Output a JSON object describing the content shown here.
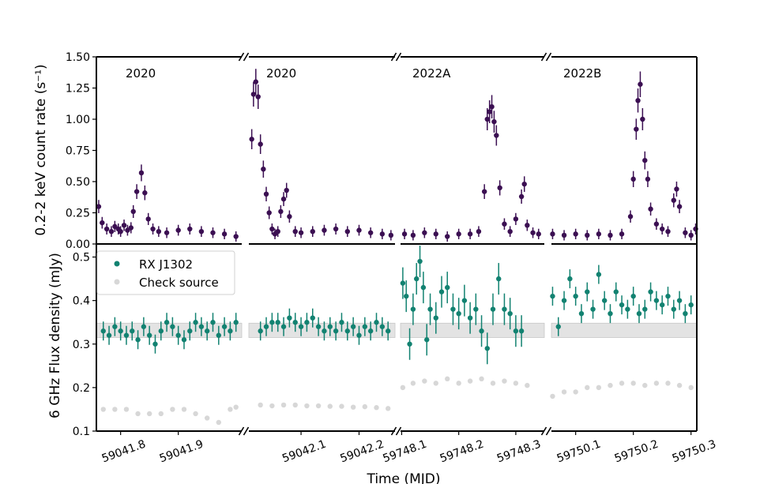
{
  "chart_data": {
    "type": "scatter",
    "title": "",
    "xlabel": "Time (MJD)",
    "colors": {
      "xray": "#3b0f52",
      "radio": "#128271",
      "check": "#bdbdbd",
      "band": "#e3e3e3"
    },
    "segments": [
      {
        "label": "2020",
        "xlim": [
          59041.758,
          59042.01
        ],
        "xticks": [
          "59041.8",
          "59041.9"
        ],
        "xtick_values": [
          59041.8,
          59041.9
        ]
      },
      {
        "label": "2020",
        "xlim": [
          59042.01,
          59042.262
        ],
        "xticks": [
          "59042.1",
          "59042.2"
        ],
        "xtick_values": [
          59042.1,
          59042.2
        ]
      },
      {
        "label": "2022A",
        "xlim": [
          59748.098,
          59748.35
        ],
        "xticks": [
          "59748.1",
          "59748.2",
          "59748.3"
        ],
        "xtick_values": [
          59748.1,
          59748.2,
          59748.3
        ]
      },
      {
        "label": "2022B",
        "xlim": [
          59750.058,
          59750.31
        ],
        "xticks": [
          "59750.1",
          "59750.2",
          "59750.3"
        ],
        "xtick_values": [
          59750.1,
          59750.2,
          59750.3
        ]
      }
    ],
    "top_panel": {
      "ylabel": "0.2-2 keV count rate (s⁻¹)",
      "ylim": [
        0,
        1.5
      ],
      "yticks": [
        "0.00",
        "0.25",
        "0.50",
        "0.75",
        "1.00",
        "1.25",
        "1.50"
      ],
      "series_name": "",
      "series": [
        {
          "segment": 0,
          "x": [
            59041.762,
            59041.768,
            59041.776,
            59041.784,
            59041.79,
            59041.796,
            59041.8,
            59041.806,
            59041.812,
            59041.818,
            59041.822,
            59041.828,
            59041.836,
            59041.842,
            59041.848,
            59041.856,
            59041.866,
            59041.88,
            59041.9,
            59041.92,
            59041.94,
            59041.96,
            59041.98,
            59042.0
          ],
          "y": [
            0.3,
            0.17,
            0.12,
            0.1,
            0.14,
            0.12,
            0.1,
            0.15,
            0.11,
            0.13,
            0.26,
            0.42,
            0.57,
            0.41,
            0.2,
            0.12,
            0.1,
            0.09,
            0.11,
            0.12,
            0.1,
            0.09,
            0.08,
            0.06
          ]
        },
        {
          "segment": 1,
          "x": [
            59042.015,
            59042.018,
            59042.022,
            59042.026,
            59042.03,
            59042.035,
            59042.04,
            59042.045,
            59042.05,
            59042.055,
            59042.06,
            59042.065,
            59042.07,
            59042.075,
            59042.08,
            59042.09,
            59042.1,
            59042.12,
            59042.14,
            59042.16,
            59042.18,
            59042.2,
            59042.22,
            59042.24,
            59042.255
          ],
          "y": [
            0.84,
            1.2,
            1.3,
            1.18,
            0.8,
            0.6,
            0.4,
            0.25,
            0.12,
            0.08,
            0.1,
            0.26,
            0.36,
            0.43,
            0.22,
            0.1,
            0.09,
            0.1,
            0.11,
            0.12,
            0.1,
            0.11,
            0.09,
            0.08,
            0.07
          ]
        },
        {
          "segment": 2,
          "x": [
            59748.105,
            59748.12,
            59748.14,
            59748.16,
            59748.18,
            59748.2,
            59748.22,
            59748.235,
            59748.245,
            59748.25,
            59748.254,
            59748.258,
            59748.262,
            59748.266,
            59748.272,
            59748.28,
            59748.29,
            59748.3,
            59748.31,
            59748.315,
            59748.32,
            59748.33,
            59748.34
          ],
          "y": [
            0.08,
            0.07,
            0.09,
            0.08,
            0.06,
            0.08,
            0.08,
            0.1,
            0.42,
            1.0,
            1.06,
            1.1,
            0.98,
            0.87,
            0.45,
            0.16,
            0.1,
            0.2,
            0.38,
            0.48,
            0.15,
            0.09,
            0.08
          ]
        },
        {
          "segment": 3,
          "x": [
            59750.06,
            59750.08,
            59750.1,
            59750.12,
            59750.14,
            59750.16,
            59750.18,
            59750.195,
            59750.2,
            59750.205,
            59750.208,
            59750.212,
            59750.216,
            59750.22,
            59750.225,
            59750.23,
            59750.24,
            59750.25,
            59750.26,
            59750.27,
            59750.275,
            59750.28,
            59750.29,
            59750.3,
            59750.308
          ],
          "y": [
            0.08,
            0.07,
            0.08,
            0.07,
            0.08,
            0.07,
            0.08,
            0.22,
            0.52,
            0.92,
            1.15,
            1.28,
            1.0,
            0.67,
            0.52,
            0.28,
            0.16,
            0.12,
            0.1,
            0.35,
            0.44,
            0.3,
            0.09,
            0.07,
            0.12
          ]
        }
      ]
    },
    "bottom_panel": {
      "ylabel": "6 GHz Flux density (mJy)",
      "ylim": [
        0.1,
        0.53
      ],
      "yticks": [
        "0.1",
        "0.2",
        "0.3",
        "0.4",
        "0.5"
      ],
      "band": [
        0.315,
        0.348
      ],
      "series": [
        {
          "name": "RX J1302",
          "points": [
            {
              "segment": 0,
              "x": [
                59041.77,
                59041.78,
                59041.79,
                59041.8,
                59041.81,
                59041.82,
                59041.83,
                59041.84,
                59041.85,
                59041.86,
                59041.87,
                59041.88,
                59041.89,
                59041.9,
                59041.91,
                59041.92,
                59041.93,
                59041.94,
                59041.95,
                59041.96,
                59041.97,
                59041.98,
                59041.99,
                59042.0
              ],
              "y": [
                0.33,
                0.32,
                0.34,
                0.33,
                0.32,
                0.33,
                0.31,
                0.34,
                0.32,
                0.3,
                0.33,
                0.35,
                0.34,
                0.32,
                0.31,
                0.33,
                0.35,
                0.34,
                0.33,
                0.35,
                0.32,
                0.34,
                0.33,
                0.35
              ]
            },
            {
              "segment": 1,
              "x": [
                59042.03,
                59042.04,
                59042.05,
                59042.06,
                59042.07,
                59042.08,
                59042.09,
                59042.1,
                59042.11,
                59042.12,
                59042.13,
                59042.14,
                59042.15,
                59042.16,
                59042.17,
                59042.18,
                59042.19,
                59042.2,
                59042.21,
                59042.22,
                59042.23,
                59042.24,
                59042.25
              ],
              "y": [
                0.33,
                0.34,
                0.35,
                0.35,
                0.34,
                0.36,
                0.35,
                0.34,
                0.35,
                0.36,
                0.34,
                0.33,
                0.34,
                0.33,
                0.35,
                0.33,
                0.34,
                0.32,
                0.34,
                0.33,
                0.35,
                0.34,
                0.33
              ]
            },
            {
              "segment": 2,
              "x": [
                59748.102,
                59748.108,
                59748.114,
                59748.12,
                59748.126,
                59748.132,
                59748.138,
                59748.144,
                59748.15,
                59748.16,
                59748.17,
                59748.18,
                59748.19,
                59748.2,
                59748.21,
                59748.22,
                59748.23,
                59748.24,
                59748.25,
                59748.26,
                59748.27,
                59748.28,
                59748.29,
                59748.3,
                59748.31
              ],
              "y": [
                0.44,
                0.41,
                0.3,
                0.38,
                0.45,
                0.49,
                0.43,
                0.31,
                0.38,
                0.36,
                0.42,
                0.43,
                0.38,
                0.37,
                0.4,
                0.36,
                0.38,
                0.33,
                0.29,
                0.38,
                0.45,
                0.38,
                0.37,
                0.33,
                0.33
              ]
            },
            {
              "segment": 3,
              "x": [
                59750.06,
                59750.07,
                59750.08,
                59750.09,
                59750.1,
                59750.11,
                59750.12,
                59750.13,
                59750.14,
                59750.15,
                59750.16,
                59750.17,
                59750.18,
                59750.19,
                59750.2,
                59750.21,
                59750.22,
                59750.23,
                59750.24,
                59750.25,
                59750.26,
                59750.27,
                59750.28,
                59750.29,
                59750.3
              ],
              "y": [
                0.41,
                0.34,
                0.4,
                0.45,
                0.41,
                0.37,
                0.42,
                0.38,
                0.46,
                0.4,
                0.37,
                0.42,
                0.39,
                0.38,
                0.41,
                0.37,
                0.38,
                0.42,
                0.4,
                0.39,
                0.41,
                0.38,
                0.4,
                0.37,
                0.39
              ]
            }
          ]
        },
        {
          "name": "Check source",
          "points": [
            {
              "segment": 0,
              "x": [
                59041.77,
                59041.79,
                59041.81,
                59041.83,
                59041.85,
                59041.87,
                59041.89,
                59041.91,
                59041.93,
                59041.95,
                59041.97,
                59041.99,
                59042.0
              ],
              "y": [
                0.15,
                0.15,
                0.15,
                0.14,
                0.14,
                0.14,
                0.15,
                0.15,
                0.14,
                0.13,
                0.12,
                0.15,
                0.155
              ]
            },
            {
              "segment": 1,
              "x": [
                59042.03,
                59042.05,
                59042.07,
                59042.09,
                59042.11,
                59042.13,
                59042.15,
                59042.17,
                59042.19,
                59042.21,
                59042.23,
                59042.25
              ],
              "y": [
                0.16,
                0.158,
                0.16,
                0.16,
                0.158,
                0.158,
                0.157,
                0.157,
                0.155,
                0.156,
                0.154,
                0.152
              ]
            },
            {
              "segment": 2,
              "x": [
                59748.102,
                59748.12,
                59748.14,
                59748.16,
                59748.18,
                59748.2,
                59748.22,
                59748.24,
                59748.26,
                59748.28,
                59748.3,
                59748.32
              ],
              "y": [
                0.2,
                0.21,
                0.215,
                0.21,
                0.22,
                0.21,
                0.215,
                0.22,
                0.21,
                0.215,
                0.21,
                0.205
              ]
            },
            {
              "segment": 3,
              "x": [
                59750.06,
                59750.08,
                59750.1,
                59750.12,
                59750.14,
                59750.16,
                59750.18,
                59750.2,
                59750.22,
                59750.24,
                59750.26,
                59750.28,
                59750.3
              ],
              "y": [
                0.18,
                0.19,
                0.19,
                0.2,
                0.2,
                0.205,
                0.21,
                0.21,
                0.205,
                0.21,
                0.21,
                0.205,
                0.2
              ]
            }
          ]
        }
      ],
      "legend": {
        "placement": "top-left",
        "entries": [
          "RX J1302",
          "Check source"
        ]
      }
    }
  }
}
